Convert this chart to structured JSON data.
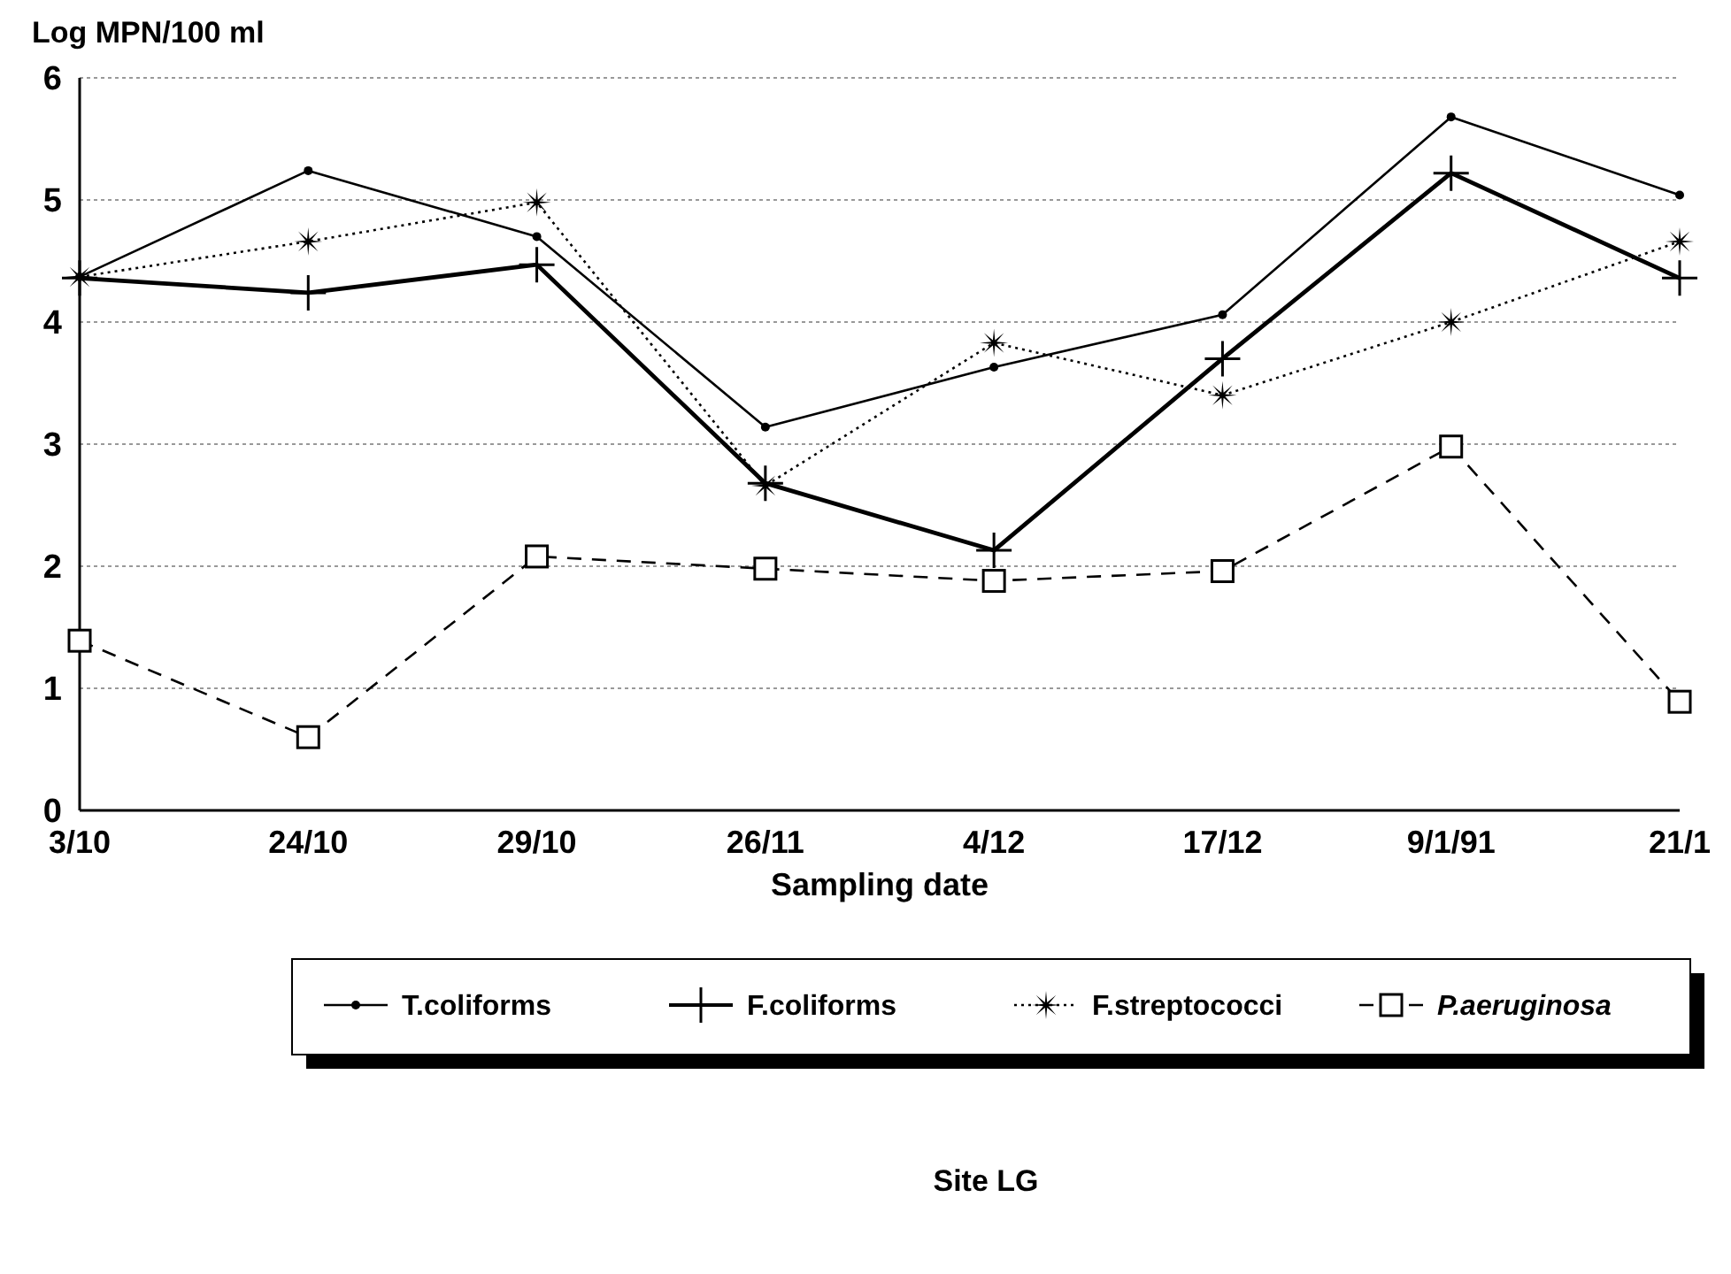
{
  "chart_data": {
    "type": "line",
    "ylabel": "Log MPN/100 ml",
    "xlabel": "Sampling date",
    "categories": [
      "3/10",
      "24/10",
      "29/10",
      "26/11",
      "4/12",
      "17/12",
      "9/1/91",
      "21/1"
    ],
    "ylim": [
      0,
      6
    ],
    "yticks": [
      0,
      1,
      2,
      3,
      4,
      5,
      6
    ],
    "grid": "y",
    "legend": "bottom",
    "annotations": [
      "Site LG"
    ],
    "series": [
      {
        "name": "T.coliforms",
        "color": "#000000",
        "marker": "circle",
        "line_style": "solid",
        "values": [
          4.37,
          5.24,
          4.7,
          3.14,
          3.63,
          4.06,
          5.68,
          5.04
        ]
      },
      {
        "name": "F.coliforms",
        "color": "#000000",
        "marker": "cross",
        "line_style": "solid",
        "values": [
          4.36,
          4.24,
          4.47,
          2.68,
          2.13,
          3.7,
          5.22,
          4.36
        ]
      },
      {
        "name": "F.streptococci",
        "color": "#000000",
        "marker": "star",
        "line_style": "dotted",
        "values": [
          4.37,
          4.66,
          4.98,
          2.66,
          3.83,
          3.4,
          4.0,
          4.66
        ]
      },
      {
        "name": "P.aeruginosa",
        "color": "#000000",
        "marker": "square",
        "line_style": "dashed",
        "values": [
          1.39,
          0.6,
          2.08,
          1.98,
          1.88,
          1.96,
          2.98,
          0.89
        ]
      }
    ]
  }
}
